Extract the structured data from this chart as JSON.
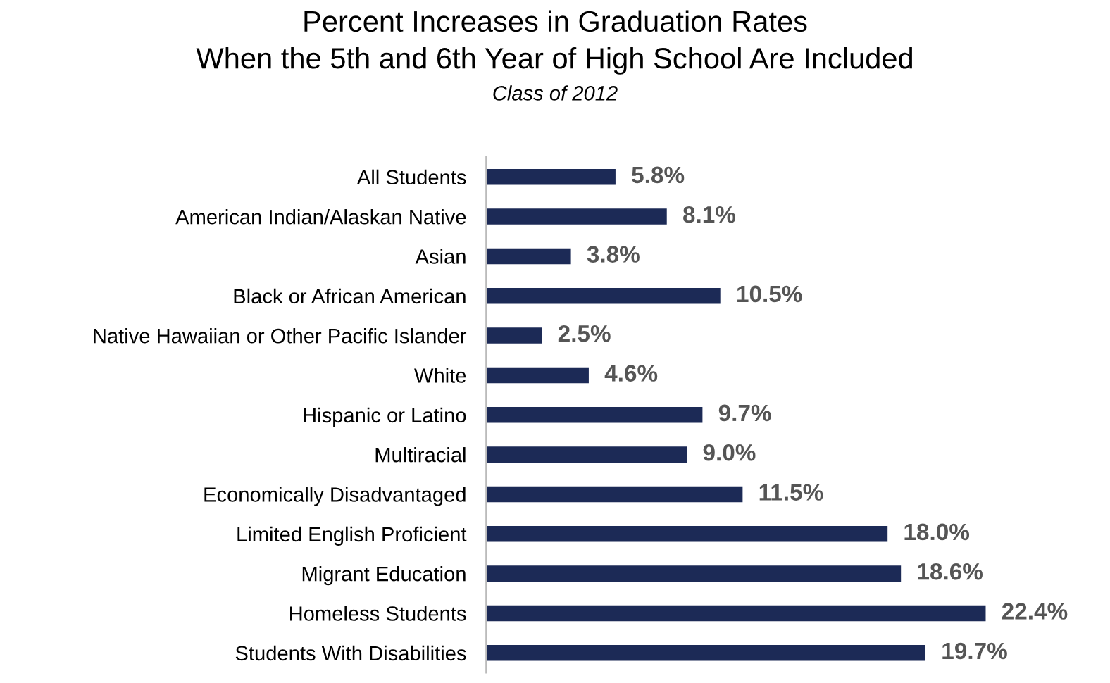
{
  "chart_data": {
    "type": "bar",
    "orientation": "horizontal",
    "title": "Percent Increases in Graduation Rates\nWhen the 5th and 6th Year of High School Are Included",
    "subtitle": "Class of 2012",
    "categories": [
      "All Students",
      "American Indian/Alaskan Native",
      "Asian",
      "Black or African American",
      "Native Hawaiian or Other Pacific Islander",
      "White",
      "Hispanic or Latino",
      "Multiracial",
      "Economically Disadvantaged",
      "Limited English Proficient",
      "Migrant Education",
      "Homeless Students",
      "Students With Disabilities"
    ],
    "values": [
      5.8,
      8.1,
      3.8,
      10.5,
      2.5,
      4.6,
      9.7,
      9.0,
      11.5,
      18.0,
      18.6,
      22.4,
      19.7
    ],
    "value_labels": [
      "5.8%",
      "8.1%",
      "3.8%",
      "10.5%",
      "2.5%",
      "4.6%",
      "9.7%",
      "9.0%",
      "11.5%",
      "18.0%",
      "18.6%",
      "22.4%",
      "19.7%"
    ],
    "color": "#1c2a56",
    "tick_labels": "y",
    "grid": false,
    "legend": false
  }
}
